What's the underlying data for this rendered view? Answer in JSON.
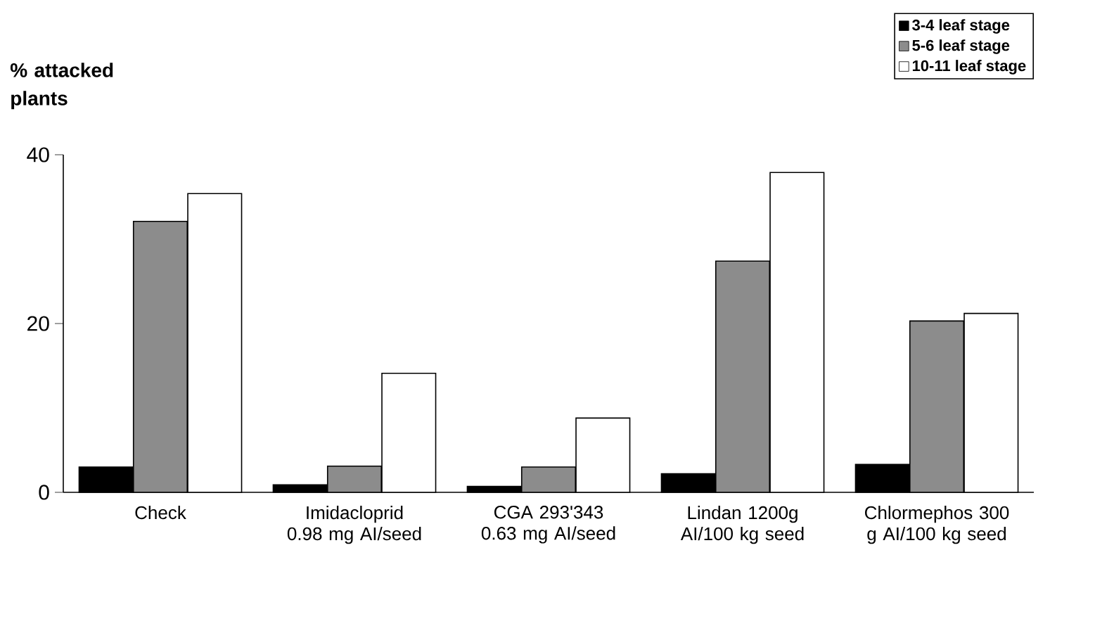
{
  "chart_data": {
    "type": "bar",
    "ylabel": "% attacked plants",
    "categories": [
      "Check",
      "Imidacloprid 0.98 mg AI/seed",
      "CGA 293'343 0.63 mg AI/seed",
      "Lindan 1200g AI/100 kg seed",
      "Chlormephos 300 g AI/100 kg seed"
    ],
    "series": [
      {
        "name": "3-4 leaf stage",
        "color": "#000000",
        "values": [
          3.0,
          0.9,
          0.7,
          2.2,
          3.3
        ]
      },
      {
        "name": "5-6 leaf stage",
        "color": "#8c8c8c",
        "values": [
          32.1,
          3.1,
          3.0,
          27.4,
          20.3
        ]
      },
      {
        "name": "10-11 leaf stage",
        "color": "#ffffff",
        "values": [
          35.4,
          14.1,
          8.8,
          37.9,
          21.2
        ]
      }
    ],
    "ylim": [
      0,
      40
    ],
    "yticks": [
      0,
      20,
      40
    ],
    "legend": "top right",
    "grid": false
  }
}
